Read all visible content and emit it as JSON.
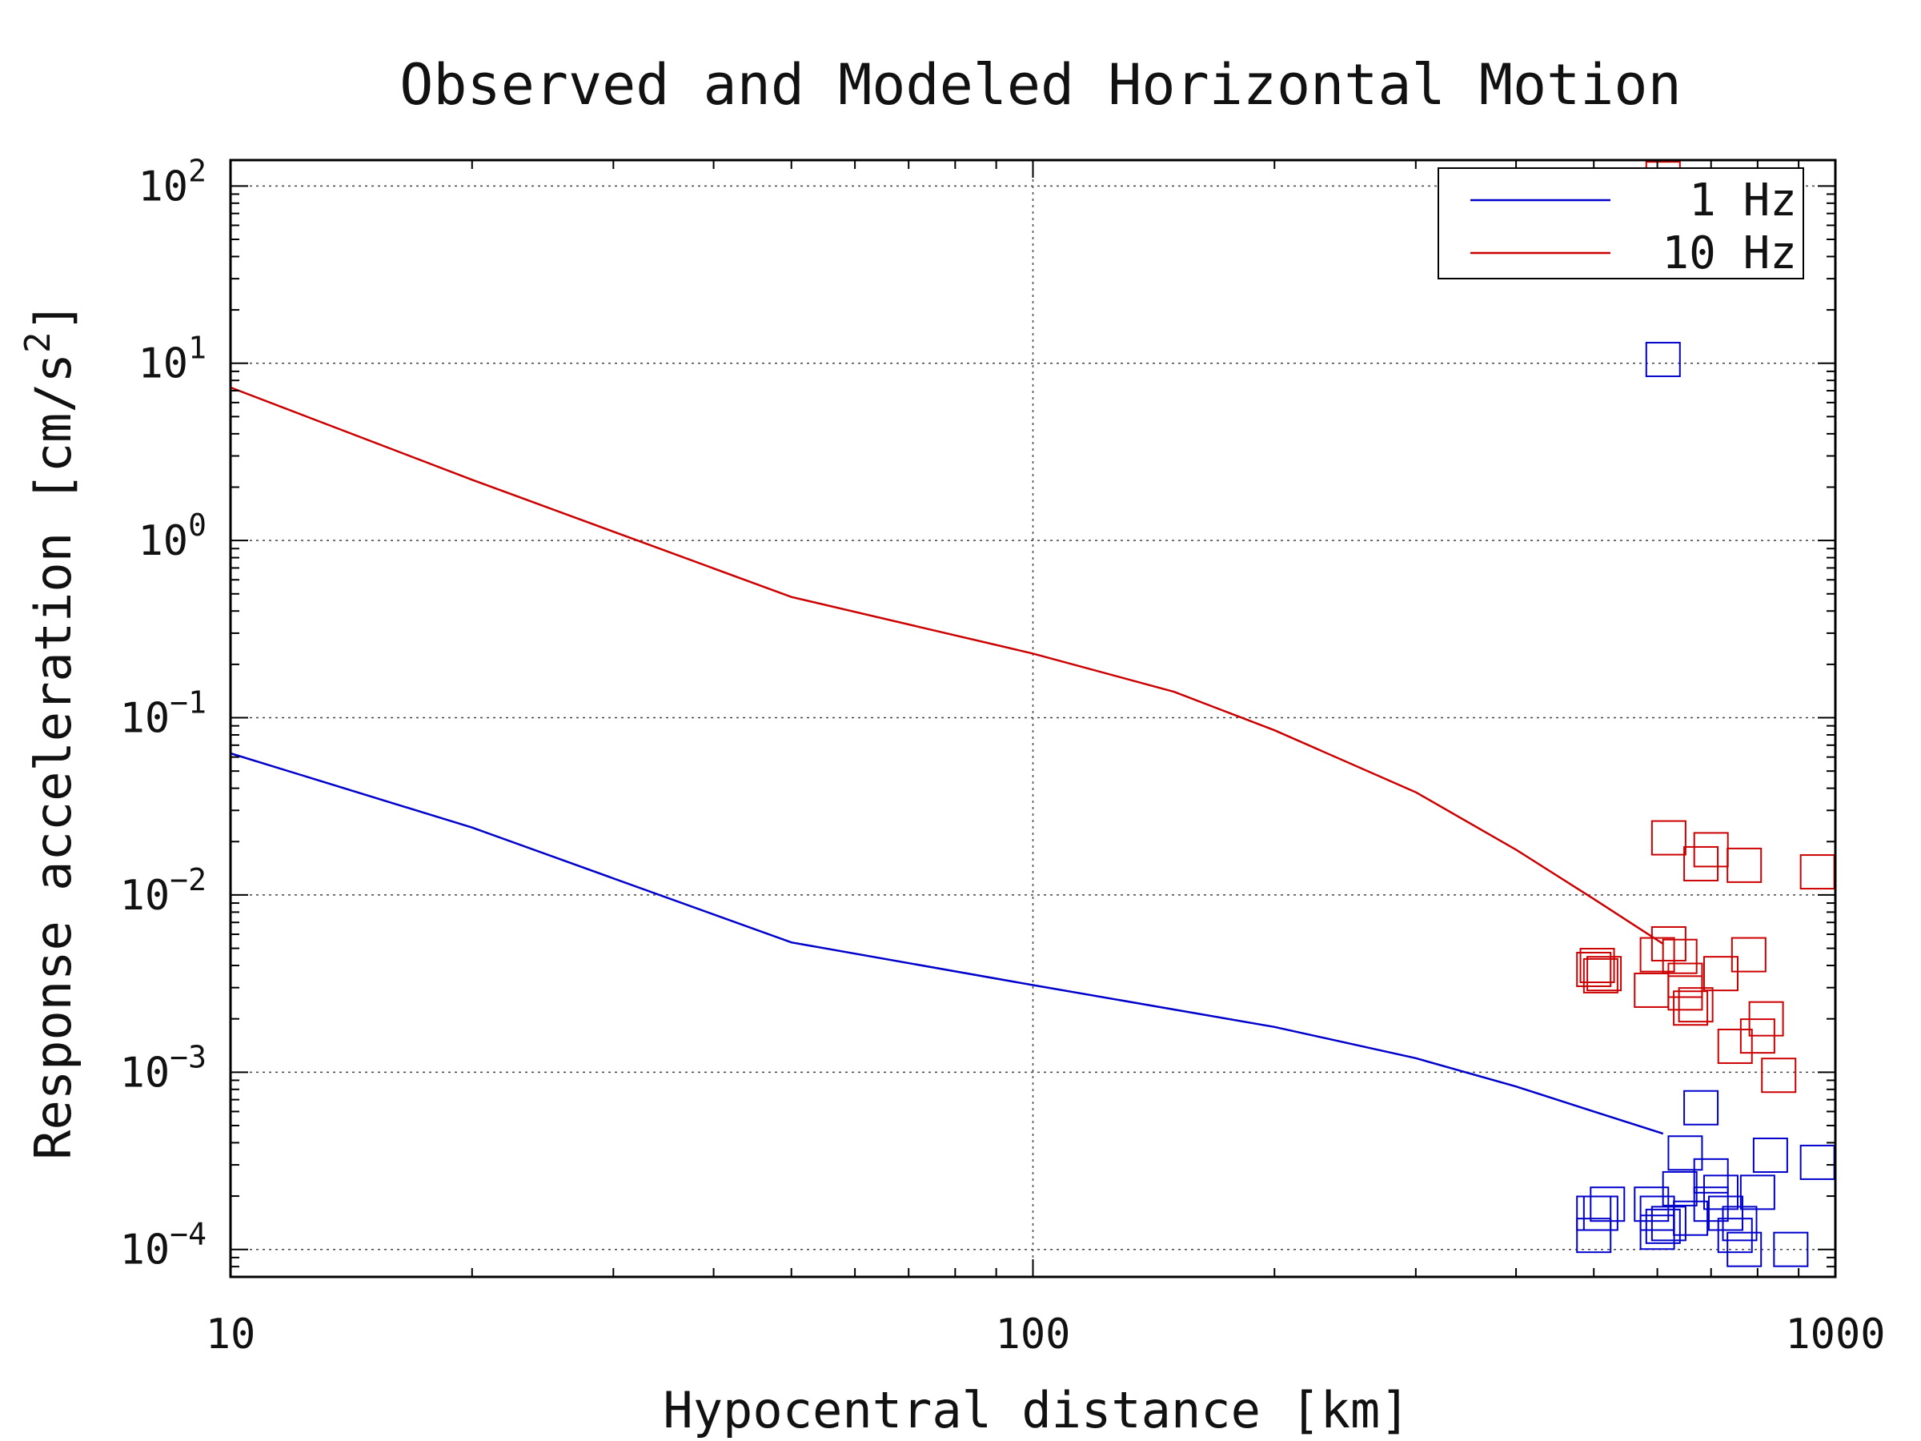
{
  "chart_data": {
    "type": "line",
    "title": "Observed and Modeled Horizontal Motion",
    "xlabel": "Hypocentral distance [km]",
    "ylabel": "Response acceleration [cm/s^2]",
    "xscale": "log",
    "yscale": "log",
    "xlim": [
      10,
      1000
    ],
    "ylim": [
      7e-05,
      140
    ],
    "x_ticks": [
      {
        "value": 10,
        "label": "10"
      },
      {
        "value": 100,
        "label": "100"
      },
      {
        "value": 1000,
        "label": "1000"
      }
    ],
    "y_ticks": [
      {
        "value": 0.0001,
        "base": "10",
        "exp": "−4"
      },
      {
        "value": 0.001,
        "base": "10",
        "exp": "−3"
      },
      {
        "value": 0.01,
        "base": "10",
        "exp": "−2"
      },
      {
        "value": 0.1,
        "base": "10",
        "exp": "−1"
      },
      {
        "value": 1,
        "base": "10",
        "exp": "0"
      },
      {
        "value": 10,
        "base": "10",
        "exp": "1"
      },
      {
        "value": 100,
        "base": "10",
        "exp": "2"
      }
    ],
    "grid": true,
    "legend_position": "top-right",
    "series": [
      {
        "name": "1 Hz",
        "color": "#0000cc",
        "line": {
          "x": [
            10,
            20,
            50,
            100,
            200,
            300,
            400,
            500,
            610
          ],
          "y": [
            0.063,
            0.024,
            0.0054,
            0.0031,
            0.0018,
            0.0012,
            0.00083,
            0.0006,
            0.00045
          ]
        },
        "observed": {
          "x": [
            610,
            500,
            500,
            510,
            520,
            590,
            600,
            600,
            610,
            620,
            640,
            650,
            660,
            680,
            700,
            700,
            720,
            730,
            750,
            760,
            770,
            800,
            830,
            880,
            950
          ],
          "y": [
            10.5,
            0.00016,
            0.00012,
            0.00016,
            0.00018,
            0.00018,
            0.00016,
            0.000125,
            0.000135,
            0.00014,
            0.00022,
            0.00035,
            0.00015,
            0.00063,
            0.00018,
            0.00026,
            0.00021,
            0.00016,
            0.00012,
            0.00014,
            0.0001,
            0.00021,
            0.00034,
            0.0001,
            0.00031
          ]
        }
      },
      {
        "name": "10 Hz",
        "color": "#cc0000",
        "line": {
          "x": [
            10,
            20,
            50,
            100,
            150,
            200,
            300,
            400,
            500,
            610
          ],
          "y": [
            7.3,
            2.2,
            0.48,
            0.23,
            0.14,
            0.085,
            0.038,
            0.018,
            0.0095,
            0.0053
          ]
        },
        "observed": {
          "x": [
            610,
            500,
            505,
            510,
            515,
            590,
            600,
            620,
            640,
            650,
            650,
            660,
            670,
            680,
            700,
            720,
            750,
            770,
            780,
            800,
            820,
            850,
            950
          ],
          "y": [
            110,
            0.0038,
            0.004,
            0.0035,
            0.0036,
            0.0029,
            0.0046,
            0.0053,
            0.0045,
            0.0033,
            0.0028,
            0.0023,
            0.0024,
            0.015,
            0.018,
            0.0036,
            0.0014,
            0.0147,
            0.0046,
            0.0016,
            0.002,
            0.00096,
            0.0135
          ]
        }
      }
    ],
    "extra_observed_10hz": {
      "x": [
        620
      ],
      "y": [
        0.021
      ]
    }
  }
}
